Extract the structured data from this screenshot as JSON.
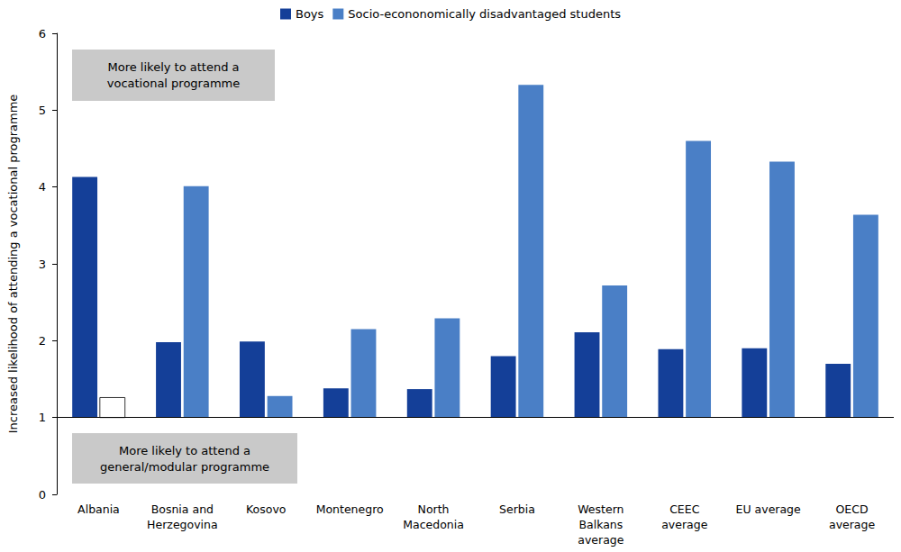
{
  "chart_data": {
    "type": "bar",
    "y_label": "Increased likelihood of attending a vocational programme",
    "categories": [
      "Albania",
      "Bosnia and\nHerzegovina",
      "Kosovo",
      "Montenegro",
      "North\nMacedonia",
      "Serbia",
      "Western\nBalkans\naverage",
      "CEEC\naverage",
      "EU average",
      "OECD\naverage"
    ],
    "series": [
      {
        "name": "Boys",
        "color": "#143f98",
        "values": [
          4.13,
          1.98,
          1.99,
          1.38,
          1.37,
          1.8,
          2.11,
          1.89,
          1.9,
          1.7
        ]
      },
      {
        "name": "Socio-econonomically disadvantaged students",
        "color": "#4a7fc6",
        "colors": [
          "#ffffff",
          "#4a7fc6",
          "#4a7fc6",
          "#4a7fc6",
          "#4a7fc6",
          "#4a7fc6",
          "#4a7fc6",
          "#4a7fc6",
          "#4a7fc6",
          "#4a7fc6"
        ],
        "values": [
          1.26,
          4.01,
          1.28,
          2.15,
          2.29,
          5.33,
          2.72,
          4.6,
          4.33,
          3.64
        ]
      }
    ],
    "baseline": 1,
    "annotations": [
      "More likely to attend a\nvocational programme",
      "More likely to attend a\ngeneral/modular programme"
    ],
    "ylim": [
      0,
      6
    ],
    "yticks": [
      0,
      1,
      2,
      3,
      4,
      5,
      6
    ],
    "grid": false,
    "legend": "top"
  }
}
